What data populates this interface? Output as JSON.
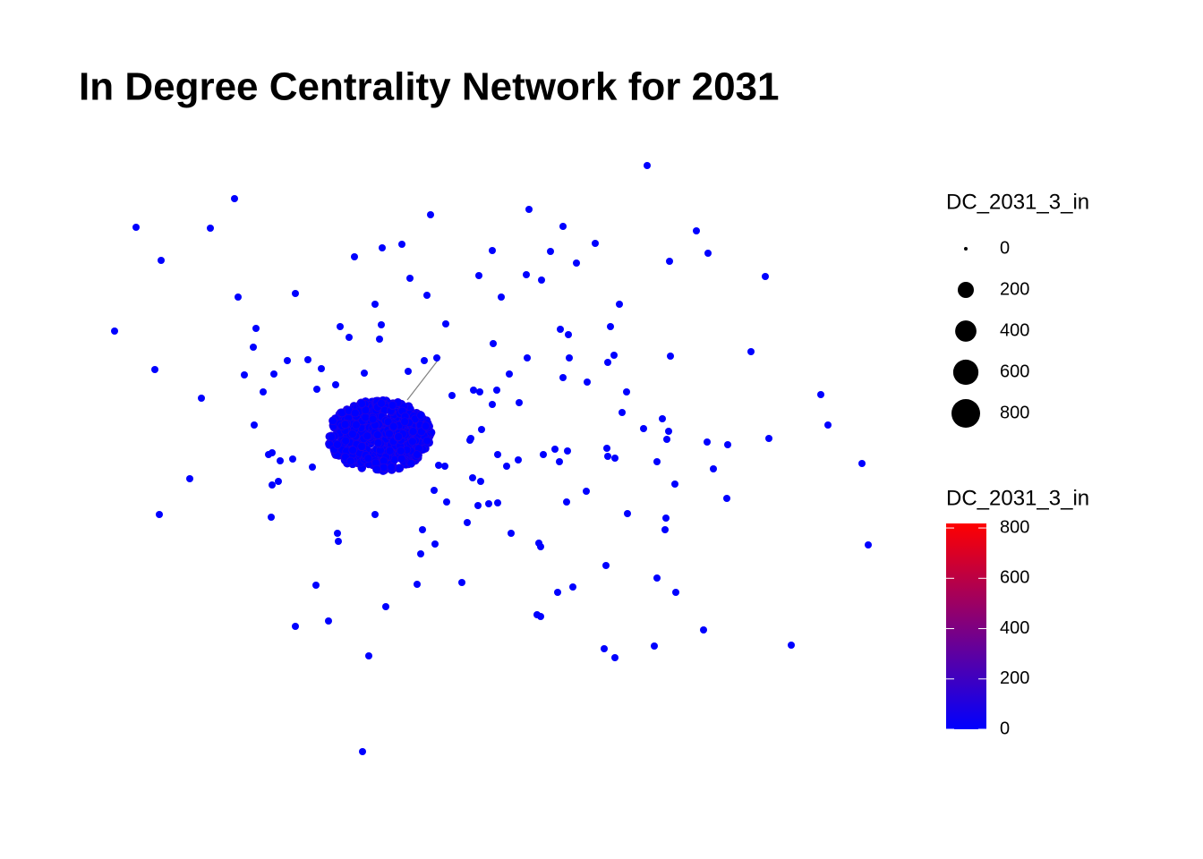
{
  "chart_data": {
    "type": "network",
    "title": "In Degree Centrality Network for 2031",
    "size_legend": {
      "title": "DC_2031_3_in",
      "breaks": [
        0,
        200,
        400,
        600,
        800
      ],
      "color": "#000000"
    },
    "color_legend": {
      "title": "DC_2031_3_in",
      "lim": [
        0,
        818
      ],
      "ticks": [
        0,
        200,
        400,
        600,
        800
      ],
      "low": "#0000ff",
      "high": "#ff0000"
    },
    "edge_color": "#808080"
  }
}
